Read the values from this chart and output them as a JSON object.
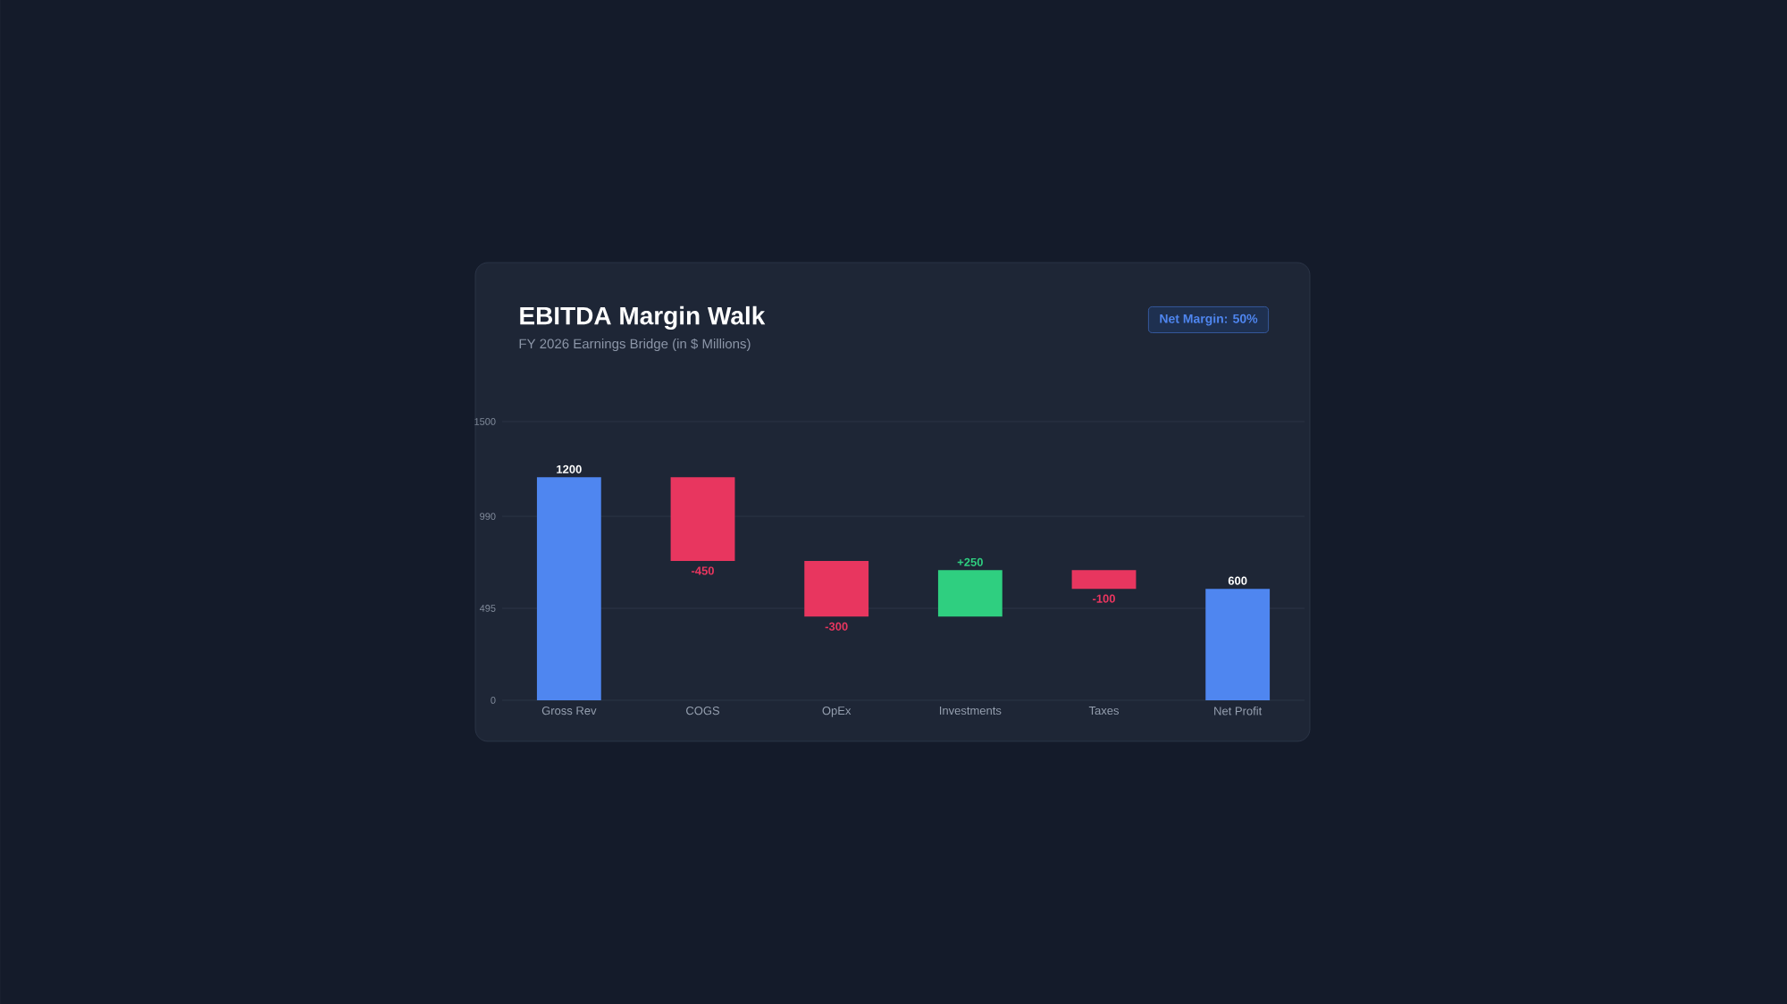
{
  "chart_data": {
    "type": "bar",
    "title": "EBITDA Margin Walk",
    "subtitle": "FY 2026 Earnings Bridge (in $ Millions)",
    "annotations": [
      "Net Margin: 50%"
    ],
    "categories": [
      "Gross Rev",
      "COGS",
      "OpEx",
      "Investments",
      "Taxes",
      "Net Profit"
    ],
    "values": [
      1200,
      -450,
      -300,
      250,
      -100,
      600
    ],
    "base": [
      0,
      1200,
      750,
      450,
      700,
      0
    ],
    "colors": [
      "#4f86f0",
      "#e8365f",
      "#e8365f",
      "#2fcf80",
      "#e8365f",
      "#4f86f0"
    ],
    "value_labels": [
      "1200",
      "-450",
      "-300",
      "+250",
      "-100",
      "600"
    ],
    "ylim": [
      0,
      1500
    ],
    "yticks": [
      0,
      495,
      990,
      1500
    ],
    "grid": "y"
  }
}
